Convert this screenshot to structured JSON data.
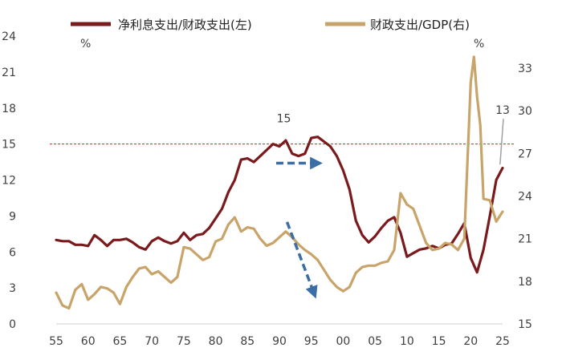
{
  "chart_data": {
    "type": "line",
    "title": "",
    "legend": {
      "placement": "top",
      "entries": [
        {
          "name": "净利息支出/财政支出(左)",
          "color": "#7b1a1c"
        },
        {
          "name": "财政支出/GDP(右)",
          "color": "#c9a46a"
        }
      ]
    },
    "x_axis": {
      "range": [
        1955,
        2025
      ],
      "tick_values": [
        1955,
        1960,
        1965,
        1970,
        1975,
        1980,
        1985,
        1990,
        1995,
        2000,
        2005,
        2010,
        2015,
        2020,
        2025
      ],
      "tick_labels": [
        "55",
        "60",
        "65",
        "70",
        "75",
        "80",
        "85",
        "90",
        "95",
        "00",
        "05",
        "10",
        "15",
        "20",
        "25"
      ]
    },
    "y_left": {
      "range": [
        0,
        24
      ],
      "ticks": [
        0,
        3,
        6,
        9,
        12,
        15,
        18,
        21,
        24
      ],
      "unit_label": "%"
    },
    "y_right": {
      "range": [
        15,
        35
      ],
      "ticks": [
        15,
        18,
        21,
        24,
        27,
        30,
        33
      ],
      "unit_label": "%"
    },
    "reference_line": {
      "axis": "left",
      "value": 15,
      "color": "#c0272d",
      "style": "dashed"
    },
    "annotations": [
      {
        "id": "label-15",
        "text": "15",
        "x": 1990.7,
        "y": 16.8,
        "axis": "left"
      },
      {
        "id": "label-13",
        "text": "13",
        "x": 2025.0,
        "y": 17.5,
        "axis": "left"
      }
    ],
    "arrows": [
      {
        "from": [
          1989.5,
          13.4
        ],
        "to": [
          1995.8,
          13.4
        ],
        "axis": "left",
        "color": "#3a6ea5"
      },
      {
        "from": [
          1991.2,
          8.5
        ],
        "to": [
          1995.4,
          2.6
        ],
        "axis": "left",
        "color": "#3a6ea5"
      }
    ],
    "series": [
      {
        "name": "净利息支出/财政支出(左)",
        "axis": "left",
        "color": "#7b1a1c",
        "x": [
          1955,
          1956,
          1957,
          1958,
          1959,
          1960,
          1961,
          1962,
          1963,
          1964,
          1965,
          1966,
          1967,
          1968,
          1969,
          1970,
          1971,
          1972,
          1973,
          1974,
          1975,
          1976,
          1977,
          1978,
          1979,
          1980,
          1981,
          1982,
          1983,
          1984,
          1985,
          1986,
          1987,
          1988,
          1989,
          1990,
          1991,
          1992,
          1993,
          1994,
          1995,
          1996,
          1997,
          1998,
          1999,
          2000,
          2001,
          2002,
          2003,
          2004,
          2005,
          2006,
          2007,
          2008,
          2009,
          2010,
          2011,
          2012,
          2013,
          2014,
          2015,
          2016,
          2017,
          2018,
          2019,
          2020,
          2021,
          2022,
          2023,
          2024,
          2025
        ],
        "values": [
          7.0,
          6.9,
          6.9,
          6.6,
          6.6,
          6.5,
          7.4,
          7.0,
          6.5,
          7.0,
          7.0,
          7.1,
          6.8,
          6.4,
          6.2,
          6.9,
          7.2,
          6.9,
          6.7,
          6.9,
          7.6,
          7.0,
          7.4,
          7.5,
          8.0,
          8.8,
          9.6,
          11.0,
          12.0,
          13.7,
          13.8,
          13.5,
          14.0,
          14.5,
          15.0,
          14.8,
          15.3,
          14.2,
          14.0,
          14.2,
          15.5,
          15.6,
          15.2,
          14.8,
          14.0,
          12.8,
          11.2,
          8.6,
          7.4,
          6.8,
          7.3,
          8.0,
          8.6,
          8.9,
          7.6,
          5.6,
          5.9,
          6.2,
          6.3,
          6.5,
          6.3,
          6.6,
          6.7,
          7.5,
          8.4,
          5.5,
          4.3,
          6.2,
          9.0,
          12.0,
          13.0
        ]
      },
      {
        "name": "财政支出/GDP(右)",
        "axis": "right",
        "color": "#c9a46a",
        "x": [
          1955,
          1956,
          1957,
          1958,
          1959,
          1960,
          1961,
          1962,
          1963,
          1964,
          1965,
          1966,
          1967,
          1968,
          1969,
          1970,
          1971,
          1972,
          1973,
          1974,
          1975,
          1976,
          1977,
          1978,
          1979,
          1980,
          1981,
          1982,
          1983,
          1984,
          1985,
          1986,
          1987,
          1988,
          1989,
          1990,
          1991,
          1992,
          1993,
          1994,
          1995,
          1996,
          1997,
          1998,
          1999,
          2000,
          2001,
          2002,
          2003,
          2004,
          2005,
          2006,
          2007,
          2008,
          2009,
          2010,
          2011,
          2012,
          2013,
          2014,
          2015,
          2016,
          2017,
          2018,
          2019,
          2020,
          2020.5,
          2021,
          2021.5,
          2022,
          2023,
          2024,
          2025
        ],
        "values": [
          17.2,
          16.3,
          16.1,
          17.4,
          17.8,
          16.7,
          17.1,
          17.6,
          17.5,
          17.2,
          16.4,
          17.6,
          18.3,
          18.9,
          19.0,
          18.5,
          18.7,
          18.3,
          17.9,
          18.3,
          20.4,
          20.3,
          19.9,
          19.5,
          19.7,
          20.8,
          21.0,
          22.0,
          22.5,
          21.5,
          21.8,
          21.7,
          21.0,
          20.5,
          20.7,
          21.1,
          21.5,
          21.1,
          20.6,
          20.2,
          19.9,
          19.5,
          18.8,
          18.1,
          17.6,
          17.3,
          17.6,
          18.6,
          19.0,
          19.1,
          19.1,
          19.3,
          19.4,
          20.2,
          24.2,
          23.4,
          23.1,
          21.9,
          20.7,
          20.2,
          20.3,
          20.7,
          20.6,
          20.2,
          21.0,
          32.0,
          33.8,
          31.0,
          29.0,
          23.8,
          23.7,
          22.2,
          22.9
        ]
      }
    ]
  }
}
